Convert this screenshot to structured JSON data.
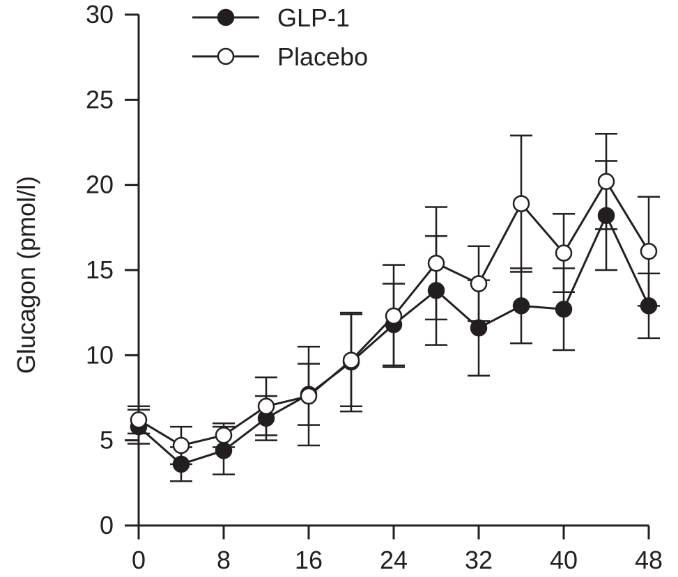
{
  "chart_data": {
    "type": "line",
    "title": "",
    "xlabel": "",
    "ylabel": "Glucagon (pmol/l)",
    "xlim": [
      0,
      48
    ],
    "ylim": [
      0,
      30
    ],
    "x_ticks": [
      0,
      8,
      16,
      24,
      32,
      40,
      48
    ],
    "y_ticks": [
      0,
      5,
      10,
      15,
      20,
      25,
      30
    ],
    "grid": false,
    "legend_position": "top-left",
    "x": [
      0,
      4,
      8,
      12,
      16,
      20,
      24,
      28,
      32,
      36,
      40,
      44,
      48
    ],
    "series": [
      {
        "name": "GLP-1",
        "marker": "filled-circle",
        "color": "#231f20",
        "values": [
          5.8,
          3.6,
          4.4,
          6.3,
          7.7,
          9.6,
          11.8,
          13.8,
          11.6,
          12.9,
          12.7,
          18.2,
          12.9
        ],
        "error": [
          1.0,
          1.0,
          1.4,
          1.3,
          1.8,
          2.9,
          2.4,
          3.2,
          2.8,
          2.2,
          2.4,
          3.2,
          1.9
        ]
      },
      {
        "name": "Placebo",
        "marker": "open-circle",
        "color": "#231f20",
        "values": [
          6.2,
          4.7,
          5.3,
          7.0,
          7.6,
          9.7,
          12.3,
          15.4,
          14.2,
          18.9,
          16.0,
          20.2,
          16.1
        ],
        "error": [
          0.8,
          1.1,
          0.7,
          1.7,
          2.9,
          2.7,
          3.0,
          3.3,
          2.2,
          4.0,
          2.3,
          2.8,
          3.2
        ]
      }
    ]
  }
}
